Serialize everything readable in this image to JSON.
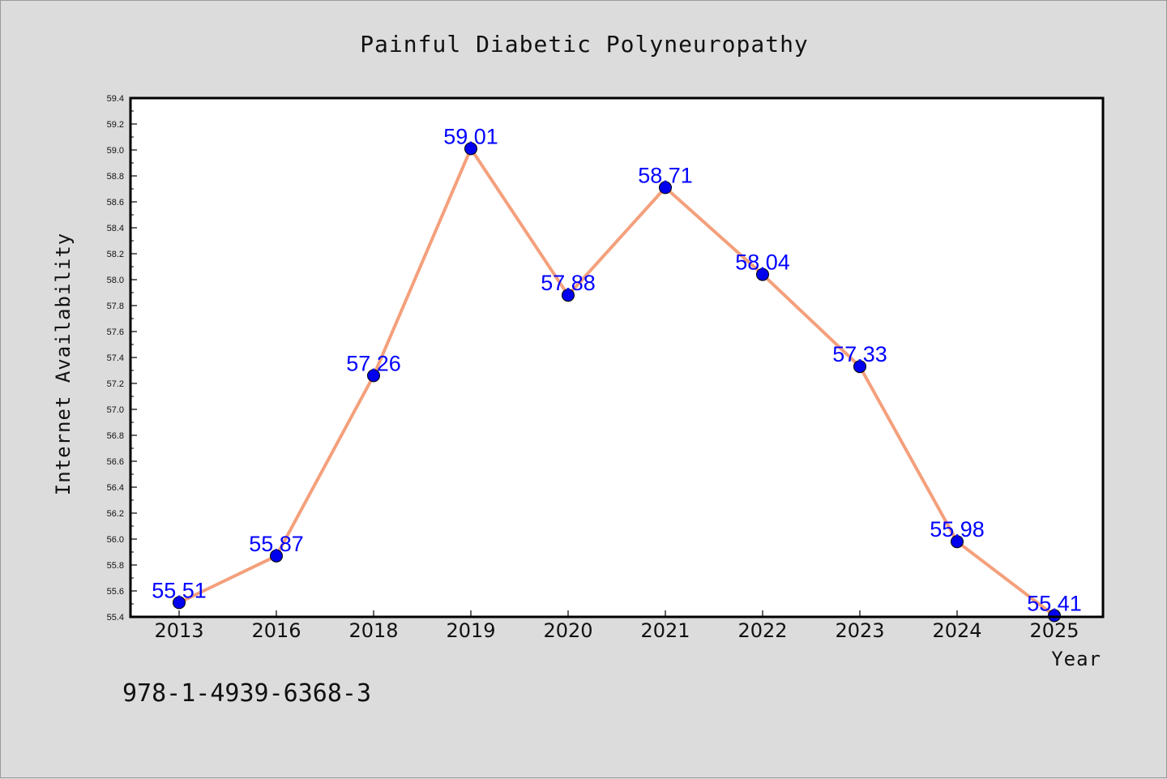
{
  "chart_data": {
    "type": "line",
    "title": "Painful Diabetic Polyneuropathy",
    "xlabel": "Year",
    "ylabel": "Internet Availability",
    "categories": [
      "2013",
      "2016",
      "2018",
      "2019",
      "2020",
      "2021",
      "2022",
      "2023",
      "2024",
      "2025"
    ],
    "series": [
      {
        "values": [
          55.51,
          55.87,
          57.26,
          59.01,
          57.88,
          58.71,
          58.04,
          57.33,
          55.98,
          55.41
        ],
        "line_color": "#f4a07c",
        "marker_color": "#0000ee"
      }
    ],
    "data_labels": [
      "55.51",
      "55.87",
      "57.26",
      "59.01",
      "57.88",
      "58.71",
      "58.04",
      "57.33",
      "55.98",
      "55.41"
    ],
    "ylim": [
      55.4,
      59.4
    ],
    "yticks": [
      "55.4",
      "55.6",
      "55.8",
      "56.0",
      "56.2",
      "56.4",
      "56.6",
      "56.8",
      "57.0",
      "57.2",
      "57.4",
      "57.6",
      "57.8",
      "58.0",
      "58.2",
      "58.4",
      "58.6",
      "58.8",
      "59.0",
      "59.2",
      "59.4"
    ],
    "grid": false,
    "legend": "none"
  },
  "annotation": "978-1-4939-6368-3"
}
